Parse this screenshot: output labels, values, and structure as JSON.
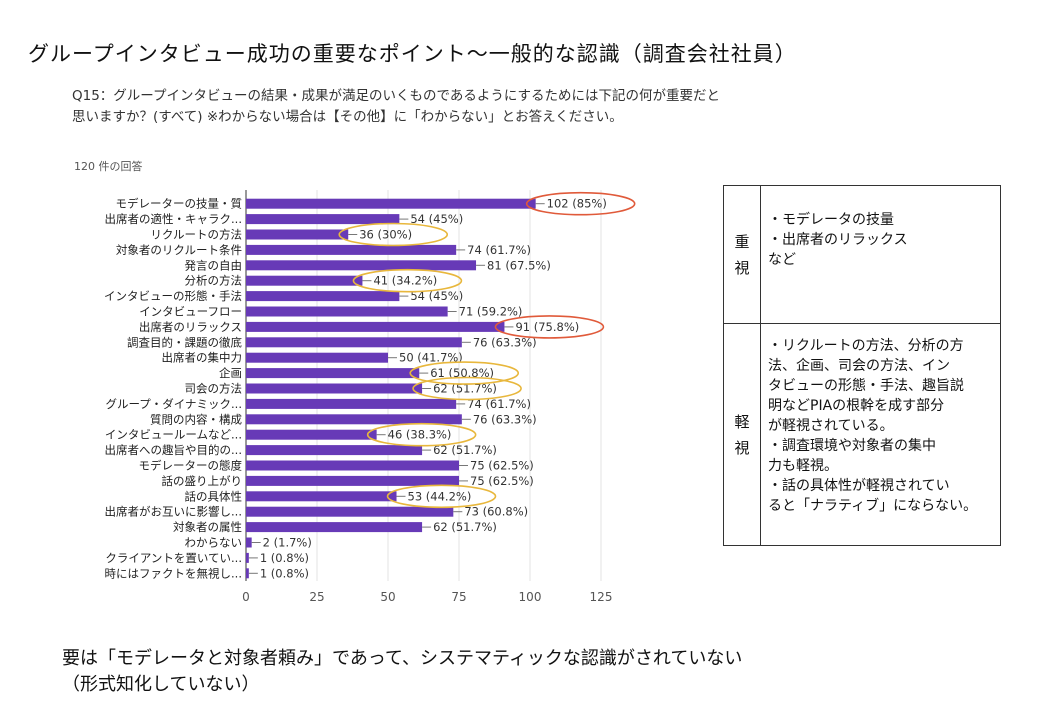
{
  "slide_title": "グループインタビュー成功の重要なポイント～一般的な認識（調査会社社員）",
  "question": "Q15：グループインタビューの結果・成果が満足のいくものであるようにするためには下記の何が重要だと思いますか？(すべて) ※わからない場合は【その他】に「わからない」とお答えください。",
  "response_count": "120 件の回答",
  "colors": {
    "bar": "#673ab7",
    "highlight_red": "#e05a3a",
    "highlight_yellow": "#e8b73c"
  },
  "chart_data": {
    "type": "bar",
    "orientation": "horizontal",
    "categories": [
      "モデレーターの技量・質",
      "出席者の適性・キャラク...",
      "リクルートの方法",
      "対象者のリクルート条件",
      "発言の自由",
      "分析の方法",
      "インタビューの形態・手法",
      "インタビューフロー",
      "出席者のリラックス",
      "調査目的・課題の徹底",
      "出席者の集中力",
      "企画",
      "司会の方法",
      "グループ・ダイナミック...",
      "質問の内容・構成",
      "インタビュールームなど...",
      "出席者への趣旨や目的の...",
      "モデレーターの態度",
      "話の盛り上がり",
      "話の具体性",
      "出席者がお互いに影響し...",
      "対象者の属性",
      "わからない",
      "クライアントを置いてい...",
      "時にはファクトを無視し..."
    ],
    "values": [
      102,
      54,
      36,
      74,
      81,
      41,
      54,
      71,
      91,
      76,
      50,
      61,
      62,
      74,
      76,
      46,
      62,
      75,
      75,
      53,
      73,
      62,
      2,
      1,
      1
    ],
    "labels": [
      "102 (85%)",
      "54 (45%)",
      "36 (30%)",
      "74 (61.7%)",
      "81 (67.5%)",
      "41 (34.2%)",
      "54 (45%)",
      "71 (59.2%)",
      "91 (75.8%)",
      "76 (63.3%)",
      "50 (41.7%)",
      "61 (50.8%)",
      "62 (51.7%)",
      "74 (61.7%)",
      "76 (63.3%)",
      "46 (38.3%)",
      "62 (51.7%)",
      "75 (62.5%)",
      "75 (62.5%)",
      "53 (44.2%)",
      "73 (60.8%)",
      "62 (51.7%)",
      "2 (1.7%)",
      "1 (0.8%)",
      "1 (0.8%)"
    ],
    "xticks": [
      "0",
      "25",
      "50",
      "75",
      "100",
      "125"
    ],
    "xlim": [
      0,
      125
    ],
    "highlight_red": [
      0,
      8
    ],
    "highlight_yellow": [
      2,
      5,
      11,
      12,
      15,
      19
    ]
  },
  "table": {
    "rows": [
      {
        "category_chars": [
          "重",
          "視"
        ],
        "lines": [
          "・モデレータの技量",
          "・出席者のリラックス",
          "など"
        ]
      },
      {
        "category_chars": [
          "軽",
          "視"
        ],
        "lines": [
          "・リクルートの方法、分析の方",
          "法、企画、司会の方法、イン",
          "タビューの形態・手法、趣旨説",
          "明などPIAの根幹を成す部分",
          "が軽視されている。",
          "・調査環境や対象者の集中",
          "力も軽視。",
          "・話の具体性が軽視されてい",
          "ると「ナラティブ」にならない。"
        ]
      }
    ]
  },
  "conclusion": [
    "要は「モデレータと対象者頼み」であって、システマティックな認識がされていない",
    "（形式知化していない）"
  ]
}
